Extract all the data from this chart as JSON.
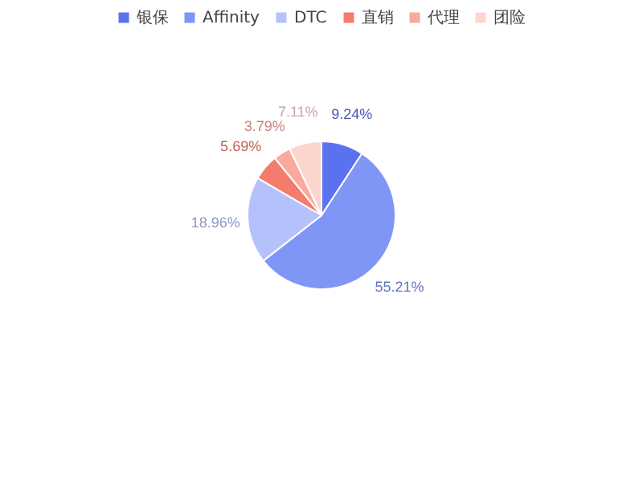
{
  "chart_data": {
    "type": "pie",
    "categories": [
      "银保",
      "Affinity",
      "DTC",
      "直销",
      "代理",
      "团险"
    ],
    "values": [
      9.24,
      55.21,
      18.96,
      5.69,
      3.79,
      7.11
    ],
    "colors": [
      "#5b72f0",
      "#7f96f7",
      "#b4c1fb",
      "#f47c6c",
      "#f9aa9d",
      "#fdd5cf"
    ],
    "value_labels": [
      "9.24%",
      "55.21%",
      "18.96%",
      "5.69%",
      "3.79%",
      "7.11%"
    ],
    "legend": "top"
  }
}
